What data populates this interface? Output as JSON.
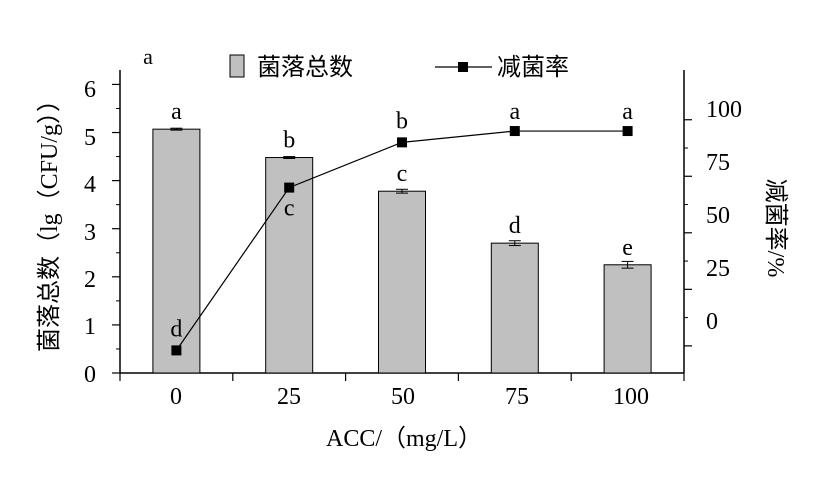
{
  "chart_data": {
    "type": "bar",
    "panel_label": "a",
    "categories": [
      "0",
      "25",
      "50",
      "75",
      "100"
    ],
    "xlabel": "ACC/（mg/L）",
    "ylabel": "菌落总数（lg（CFU/g））",
    "y2label": "减菌率/%",
    "ylim": [
      0,
      6.3
    ],
    "yticks": [
      "0",
      "1",
      "2",
      "3",
      "4",
      "5",
      "6"
    ],
    "y2lim": [
      -12,
      122
    ],
    "y2ticks": [
      "0",
      "25",
      "50",
      "75",
      "100"
    ],
    "series": [
      {
        "name": "菌落总数",
        "kind": "bar",
        "axis": "left",
        "values": [
          5.07,
          4.48,
          3.78,
          2.7,
          2.25
        ],
        "errors": [
          0.02,
          0.02,
          0.04,
          0.05,
          0.07
        ],
        "labels": [
          "a",
          "b",
          "c",
          "d",
          "e"
        ],
        "color": "#c0c0c0"
      },
      {
        "name": "减菌率",
        "kind": "line",
        "axis": "right",
        "values": [
          -2,
          70,
          90,
          95,
          95
        ],
        "labels": [
          "d",
          "c",
          "b",
          "a",
          "a"
        ],
        "color": "#000000"
      }
    ],
    "legend_position": "top"
  }
}
